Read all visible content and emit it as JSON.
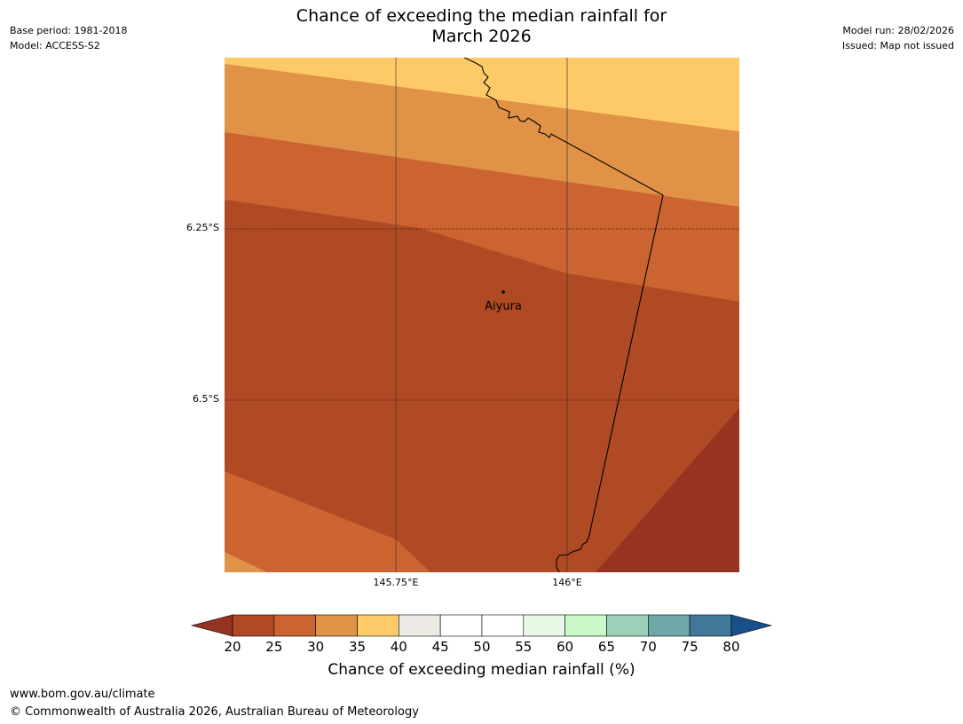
{
  "header": {
    "base_period": "Base period: 1981-2018",
    "model": "Model: ACCESS-S2",
    "model_run": "Model run: 28/02/2026",
    "issued": "Issued: Map not issued",
    "title_line1": "Chance of exceeding the median rainfall for",
    "title_line2": "March 2026"
  },
  "map": {
    "latitudes": [
      "6.25°S",
      "6.5°S"
    ],
    "longitudes": [
      "145.75°E",
      "146°E"
    ],
    "place": {
      "name": "Aiyura"
    }
  },
  "colorbar": {
    "ticks": [
      "20",
      "25",
      "30",
      "35",
      "40",
      "45",
      "50",
      "55",
      "60",
      "65",
      "70",
      "75",
      "80"
    ],
    "colors": [
      "#b04a24",
      "#cb6431",
      "#e09246",
      "#fdca67",
      "#ede9e4",
      "#ffffff",
      "#ffffff",
      "#e9f7e6",
      "#c9f9c9",
      "#9cd0b9",
      "#6fa6a7",
      "#3f7899"
    ],
    "under_color": "#963421",
    "over_color": "#1a4f8c",
    "label": "Chance of exceeding median rainfall (%)"
  },
  "footer": {
    "url": "www.bom.gov.au/climate",
    "copyright": "© Commonwealth of Australia 2026, Australian Bureau of Meteorology"
  }
}
